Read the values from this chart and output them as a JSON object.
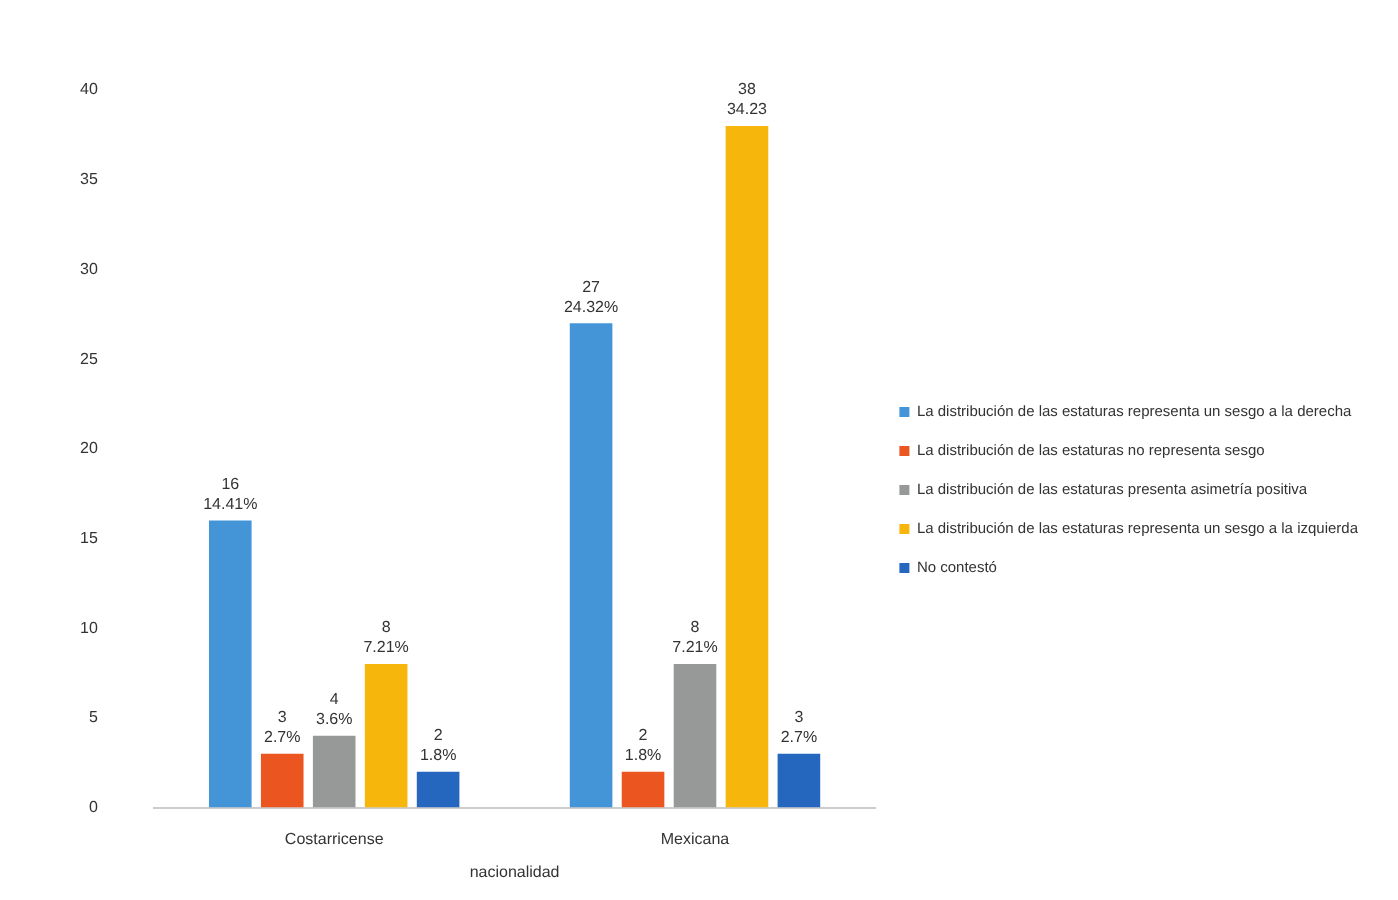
{
  "chart_data": {
    "type": "bar",
    "xlabel": "nacionalidad",
    "categories": [
      "Costarricense",
      "Mexicana"
    ],
    "series": [
      {
        "name": "La distribución de las estaturas representa un sesgo a la derecha",
        "color": "#4395d8",
        "values": [
          16,
          27
        ],
        "value_labels": [
          "16\n14.41%",
          "27\n24.32%"
        ]
      },
      {
        "name": "La distribución de las estaturas no representa sesgo",
        "color": "#ea5520",
        "values": [
          3,
          2
        ],
        "value_labels": [
          "3\n2.7%",
          "2\n1.8%"
        ]
      },
      {
        "name": "La distribución de las estaturas presenta asimetría positiva",
        "color": "#979999",
        "values": [
          4,
          8
        ],
        "value_labels": [
          "4\n3.6%",
          "8\n7.21%"
        ]
      },
      {
        "name": "La distribución de las estaturas representa un sesgo a la izquierda",
        "color": "#f6b60c",
        "values": [
          8,
          38
        ],
        "value_labels": [
          "8\n7.21%",
          "38\n34.23"
        ]
      },
      {
        "name": "No contestó",
        "color": "#2566bf",
        "values": [
          2,
          3
        ],
        "value_labels": [
          "2\n1.8%",
          "3\n2.7%"
        ]
      }
    ],
    "ylim": [
      0,
      40
    ],
    "yticks": [
      0,
      5,
      10,
      15,
      20,
      25,
      30,
      35,
      40
    ],
    "grid": false,
    "legend": "right"
  }
}
